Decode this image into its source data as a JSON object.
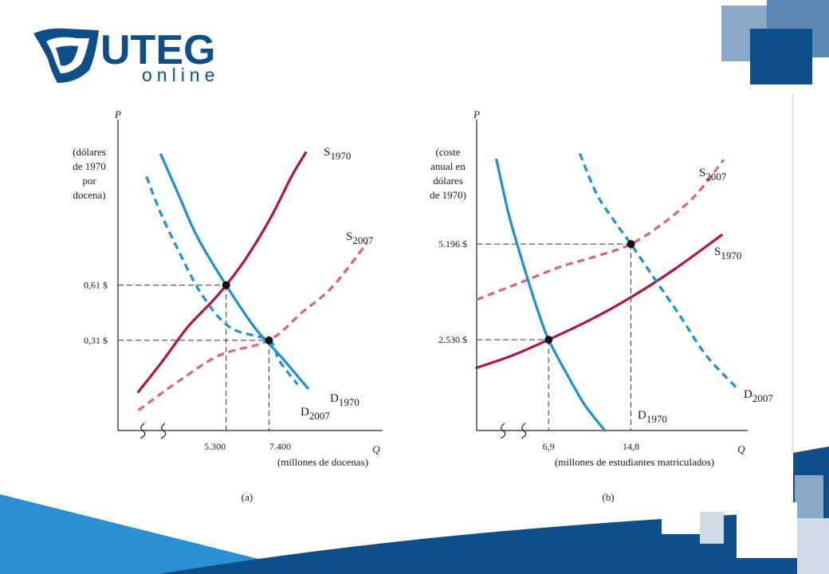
{
  "brand": {
    "name": "UTEG",
    "sub": "online"
  },
  "colors": {
    "demand": "#1f8fd1",
    "supply": "#b0154a",
    "supply_dashed": "#e0617a",
    "navy": "#0e4f8a",
    "steel": "#6f97bd",
    "light_blue": "#2a8fd3"
  },
  "chart_data": [
    {
      "type": "line",
      "panel": "(a)",
      "y_axis_symbol": "P",
      "x_axis_symbol": "Q",
      "ylabel": [
        "(dólares",
        "de 1970",
        "por",
        "docena)"
      ],
      "xlabel": "(millones de docenas)",
      "y_ticks": [
        {
          "value": 0.61,
          "label": "0,61 $"
        },
        {
          "value": 0.31,
          "label": "0,31 $"
        }
      ],
      "x_ticks": [
        {
          "value": 5300,
          "label": "5.300"
        },
        {
          "value": 7400,
          "label": "7.400"
        }
      ],
      "series": [
        {
          "name": "S1970",
          "label_main": "S",
          "label_sub": "1970",
          "style": "solid",
          "color": "supply",
          "points": [
            [
              1000,
              0.03
            ],
            [
              2200,
              0.2
            ],
            [
              3400,
              0.38
            ],
            [
              4600,
              0.52
            ],
            [
              5300,
              0.61
            ],
            [
              6300,
              0.76
            ],
            [
              7500,
              0.98
            ],
            [
              8500,
              1.2
            ],
            [
              9200,
              1.33
            ]
          ]
        },
        {
          "name": "S2007",
          "label_main": "S",
          "label_sub": "2007",
          "style": "dashed",
          "color": "supply_dashed",
          "points": [
            [
              1000,
              -0.07
            ],
            [
              3000,
              0.09
            ],
            [
              5000,
              0.23
            ],
            [
              7400,
              0.31
            ],
            [
              9000,
              0.46
            ],
            [
              10500,
              0.6
            ],
            [
              12200,
              0.84
            ]
          ]
        },
        {
          "name": "D1970",
          "label_main": "D",
          "label_sub": "1970",
          "style": "solid",
          "color": "demand",
          "points": [
            [
              2100,
              1.32
            ],
            [
              2900,
              1.12
            ],
            [
              3900,
              0.87
            ],
            [
              5300,
              0.61
            ],
            [
              6700,
              0.38
            ],
            [
              8000,
              0.22
            ],
            [
              9300,
              0.05
            ]
          ]
        },
        {
          "name": "D2007",
          "label_main": "D",
          "label_sub": "2007",
          "style": "dashed",
          "color": "demand",
          "points": [
            [
              1400,
              1.2
            ],
            [
              2100,
              1.0
            ],
            [
              3000,
              0.79
            ],
            [
              4100,
              0.56
            ],
            [
              5500,
              0.38
            ],
            [
              7400,
              0.31
            ],
            [
              7900,
              0.2
            ],
            [
              8800,
              0.07
            ]
          ]
        }
      ],
      "equilibria": [
        {
          "x": 5300,
          "y": 0.61
        },
        {
          "x": 7400,
          "y": 0.31
        }
      ],
      "caption": "(a)"
    },
    {
      "type": "line",
      "panel": "(b)",
      "y_axis_symbol": "P",
      "x_axis_symbol": "Q",
      "ylabel": [
        "(coste",
        "anual en",
        "dólares",
        "de 1970)"
      ],
      "xlabel": "(millones de estudiantes matriculados)",
      "y_ticks": [
        {
          "value": 5196,
          "label": "5.196 $"
        },
        {
          "value": 2530,
          "label": "2.530 $"
        }
      ],
      "x_ticks": [
        {
          "value": 6.9,
          "label": "6,9"
        },
        {
          "value": 14.8,
          "label": "14,8"
        }
      ],
      "series": [
        {
          "name": "S1970",
          "label_main": "S",
          "label_sub": "1970",
          "style": "solid",
          "color": "supply",
          "points": [
            [
              0,
              1750
            ],
            [
              3.5,
              2100
            ],
            [
              6.9,
              2530
            ],
            [
              11,
              3100
            ],
            [
              15,
              3750
            ],
            [
              19,
              4500
            ],
            [
              23.5,
              5450
            ]
          ]
        },
        {
          "name": "S2007",
          "label_main": "S",
          "label_sub": "2007",
          "style": "dashed",
          "color": "supply_dashed",
          "points": [
            [
              0,
              3650
            ],
            [
              4,
              4100
            ],
            [
              8,
              4560
            ],
            [
              11.5,
              4860
            ],
            [
              14.8,
              5196
            ],
            [
              18,
              5800
            ],
            [
              21,
              6560
            ],
            [
              23.7,
              7550
            ]
          ]
        },
        {
          "name": "D1970",
          "label_main": "D",
          "label_sub": "1970",
          "style": "solid",
          "color": "demand",
          "points": [
            [
              1.9,
              7550
            ],
            [
              3.1,
              6000
            ],
            [
              4.5,
              4600
            ],
            [
              5.8,
              3400
            ],
            [
              6.9,
              2530
            ],
            [
              8.7,
              1550
            ],
            [
              10.4,
              700
            ],
            [
              12.3,
              0
            ]
          ]
        },
        {
          "name": "D2007",
          "label_main": "D",
          "label_sub": "2007",
          "style": "dashed",
          "color": "demand",
          "points": [
            [
              9.9,
              7720
            ],
            [
              11.5,
              6600
            ],
            [
              13.3,
              5800
            ],
            [
              14.8,
              5196
            ],
            [
              16.9,
              4300
            ],
            [
              19.5,
              3200
            ],
            [
              22,
              2100
            ],
            [
              24.9,
              1200
            ]
          ]
        }
      ],
      "equilibria": [
        {
          "x": 6.9,
          "y": 2530
        },
        {
          "x": 14.8,
          "y": 5196
        }
      ],
      "caption": "(b)"
    }
  ]
}
